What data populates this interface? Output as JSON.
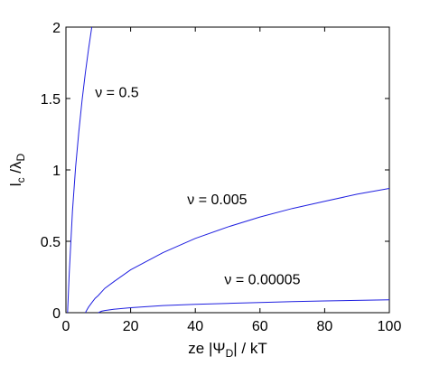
{
  "chart_data": {
    "type": "line",
    "xlabel": {
      "main": "ze |Ψ",
      "sub": "D",
      "rest": "| / kT"
    },
    "ylabel": {
      "a": "l",
      "a_sub": "c",
      "b": " /λ",
      "b_sub": "D"
    },
    "xlim": [
      0,
      100
    ],
    "ylim": [
      0,
      2
    ],
    "xticks": [
      0,
      20,
      40,
      60,
      80,
      100
    ],
    "yticks": [
      0,
      0.5,
      1,
      1.5,
      2
    ],
    "ytick_labels": [
      "0",
      "0.5",
      "1",
      "1.5",
      "2"
    ],
    "grid": false,
    "legend": "none",
    "line_color": "#1f1fe0",
    "series": [
      {
        "x": [
          0.5,
          1,
          2,
          3,
          4,
          5,
          6,
          7,
          8
        ],
        "y": [
          0.0,
          0.27,
          0.71,
          1.02,
          1.27,
          1.49,
          1.68,
          1.85,
          2.0
        ]
      },
      {
        "x": [
          6,
          6.5,
          7,
          8,
          9,
          10,
          12,
          15,
          20,
          25,
          30,
          40,
          50,
          60,
          70,
          80,
          90,
          100
        ],
        "y": [
          0.0,
          0.02,
          0.04,
          0.07,
          0.1,
          0.12,
          0.17,
          0.22,
          0.3,
          0.36,
          0.42,
          0.52,
          0.6,
          0.67,
          0.73,
          0.78,
          0.83,
          0.87
        ]
      },
      {
        "x": [
          10,
          11,
          12,
          15,
          20,
          30,
          40,
          50,
          60,
          70,
          80,
          90,
          100
        ],
        "y": [
          0.0,
          0.01,
          0.015,
          0.025,
          0.035,
          0.05,
          0.058,
          0.065,
          0.071,
          0.077,
          0.082,
          0.086,
          0.09
        ]
      }
    ],
    "annotations": [
      {
        "text": "ν = 0.5",
        "x": 9,
        "y": 1.51
      },
      {
        "text": "ν = 0.005",
        "x": 37.5,
        "y": 0.76
      },
      {
        "text": "ν = 0.00005",
        "x": 49,
        "y": 0.2
      }
    ]
  }
}
